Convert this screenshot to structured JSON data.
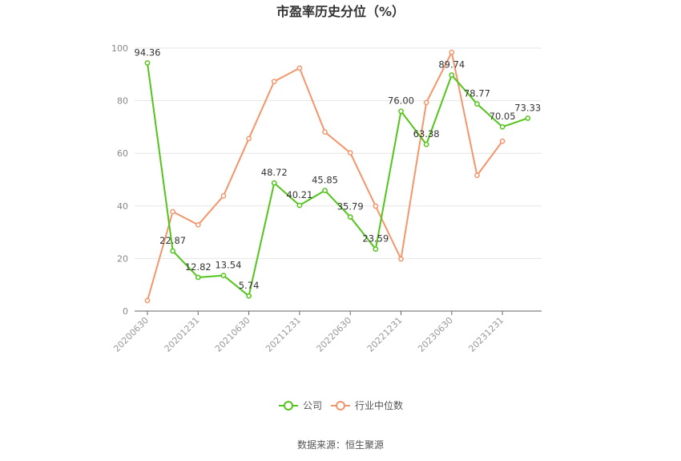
{
  "chart_data": {
    "type": "line",
    "title": "市盈率历史分位（%）",
    "source": "数据来源：恒生聚源",
    "ylim": [
      0,
      100
    ],
    "yticks": [
      0,
      20,
      40,
      60,
      80,
      100
    ],
    "x_tick_labels": [
      "20200630",
      "20201231",
      "20210630",
      "20211231",
      "20220630",
      "20221231",
      "20230630",
      "20231231"
    ],
    "x_tick_positions": [
      0,
      2,
      4,
      6,
      8,
      10,
      12,
      14
    ],
    "legend_position": "bottom",
    "grid": true,
    "series": [
      {
        "name": "公司",
        "color": "#52c41a",
        "values": [
          94.36,
          22.87,
          12.82,
          13.54,
          5.74,
          48.72,
          40.21,
          45.85,
          35.79,
          23.59,
          76.0,
          63.38,
          89.74,
          78.77,
          70.05,
          73.33
        ],
        "labels": [
          "94.36",
          "22.87",
          "12.82",
          "13.54",
          "5.74",
          "48.72",
          "40.21",
          "45.85",
          "35.79",
          "23.59",
          "76.00",
          "63.38",
          "89.74",
          "78.77",
          "70.05",
          "73.33"
        ]
      },
      {
        "name": "行业中位数",
        "color": "#f4956a",
        "values": [
          4.0,
          37.8,
          32.8,
          43.8,
          65.6,
          87.3,
          92.4,
          68.1,
          60.2,
          39.9,
          19.8,
          79.3,
          98.4,
          51.6,
          64.6,
          null
        ]
      }
    ]
  }
}
